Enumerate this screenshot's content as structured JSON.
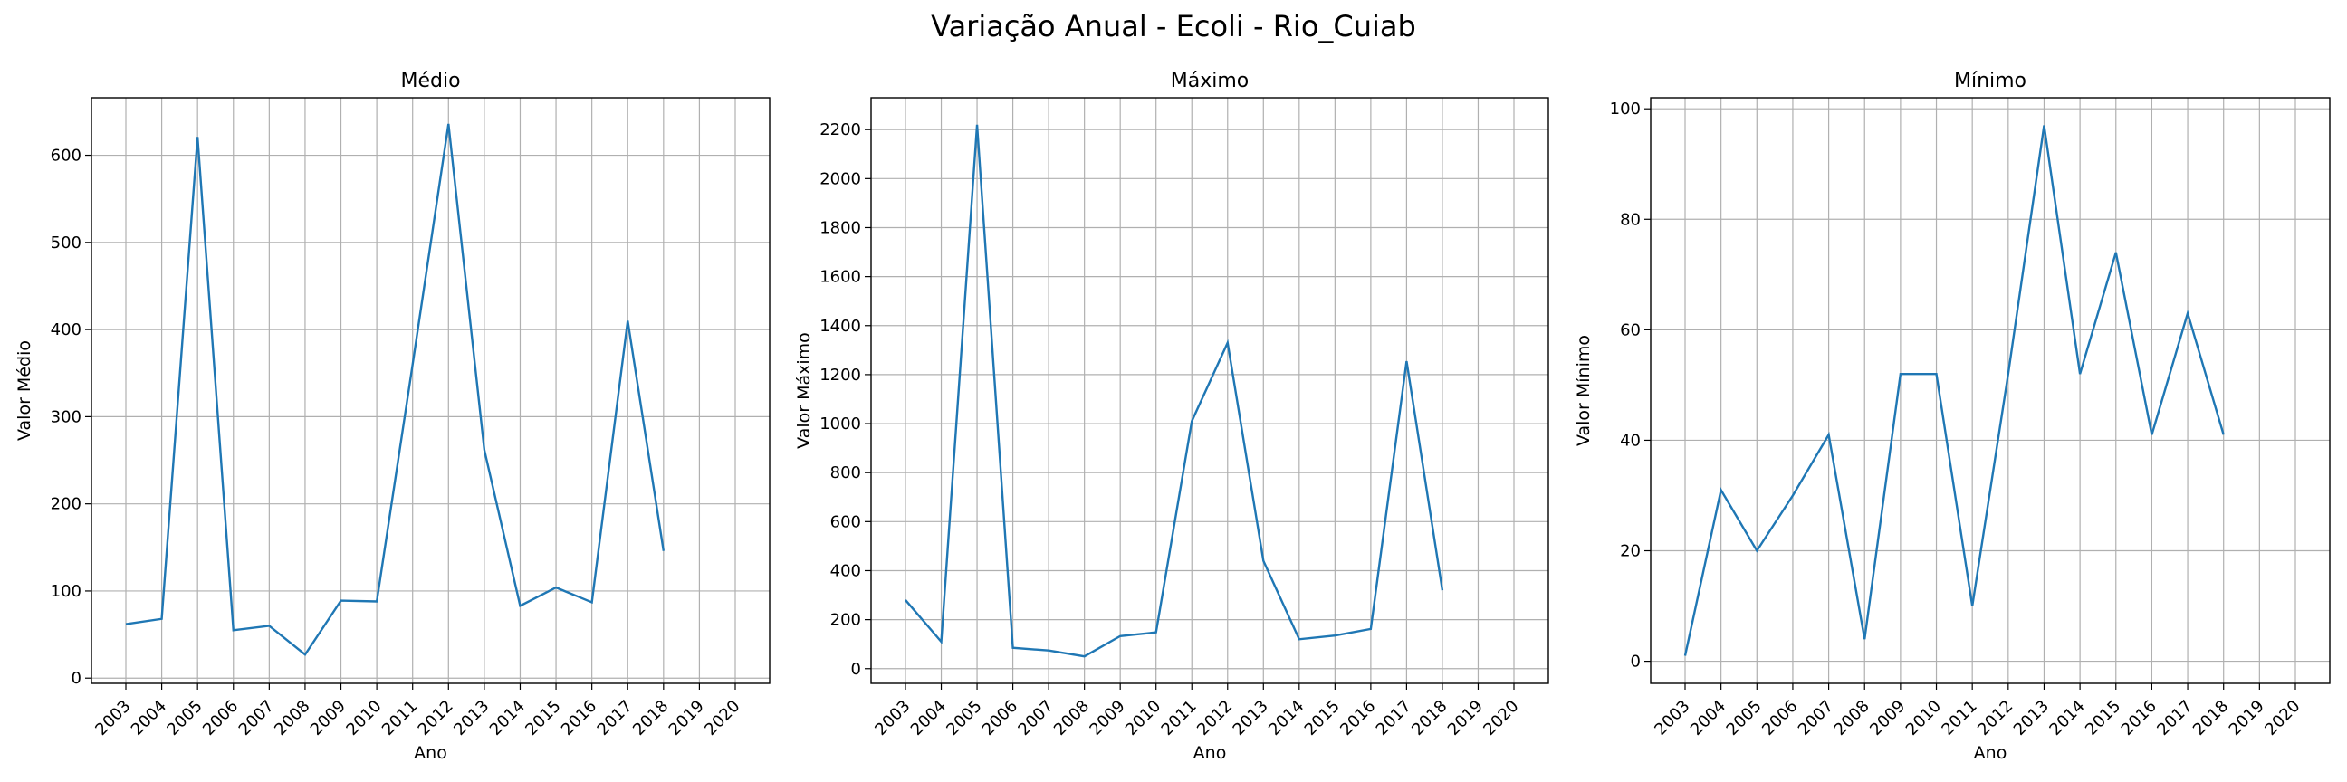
{
  "figure": {
    "title": "Variação Anual - Ecoli - Rio_Cuiab",
    "line_color": "#1f77b4",
    "grid_color": "#b0b0b0"
  },
  "chart_data": [
    {
      "type": "line",
      "title": "Médio",
      "xlabel": "Ano",
      "ylabel": "Valor Médio",
      "grid": true,
      "x_ticks": [
        "2003",
        "2004",
        "2005",
        "2006",
        "2007",
        "2008",
        "2009",
        "2010",
        "2011",
        "2012",
        "2013",
        "2014",
        "2015",
        "2016",
        "2017",
        "2018",
        "2019",
        "2020"
      ],
      "y_ticks": [
        0,
        100,
        200,
        300,
        400,
        500,
        600
      ],
      "ylim": [
        -6,
        666
      ],
      "series": [
        {
          "x": [
            "2003",
            "2004",
            "2005",
            "2006",
            "2007",
            "2008",
            "2009",
            "2010",
            "2011",
            "2012",
            "2013",
            "2014",
            "2015",
            "2016",
            "2017",
            "2018"
          ],
          "values": [
            62,
            68,
            621,
            55,
            60,
            27,
            89,
            88,
            360,
            636,
            262,
            83,
            104,
            87,
            410,
            146
          ]
        }
      ]
    },
    {
      "type": "line",
      "title": "Máximo",
      "xlabel": "Ano",
      "ylabel": "Valor Máximo",
      "grid": true,
      "x_ticks": [
        "2003",
        "2004",
        "2005",
        "2006",
        "2007",
        "2008",
        "2009",
        "2010",
        "2011",
        "2012",
        "2013",
        "2014",
        "2015",
        "2016",
        "2017",
        "2018",
        "2019",
        "2020"
      ],
      "y_ticks": [
        0,
        200,
        400,
        600,
        800,
        1000,
        1200,
        1400,
        1600,
        1800,
        2000,
        2200
      ],
      "ylim": [
        -60,
        2330
      ],
      "series": [
        {
          "x": [
            "2003",
            "2004",
            "2005",
            "2006",
            "2007",
            "2008",
            "2009",
            "2010",
            "2011",
            "2012",
            "2013",
            "2014",
            "2015",
            "2016",
            "2017",
            "2018"
          ],
          "values": [
            280,
            110,
            2220,
            85,
            74,
            50,
            133,
            148,
            1010,
            1330,
            440,
            120,
            135,
            162,
            1255,
            320
          ]
        }
      ]
    },
    {
      "type": "line",
      "title": "Mínimo",
      "xlabel": "Ano",
      "ylabel": "Valor Mínimo",
      "grid": true,
      "x_ticks": [
        "2003",
        "2004",
        "2005",
        "2006",
        "2007",
        "2008",
        "2009",
        "2010",
        "2011",
        "2012",
        "2013",
        "2014",
        "2015",
        "2016",
        "2017",
        "2018",
        "2019",
        "2020"
      ],
      "y_ticks": [
        0,
        20,
        40,
        60,
        80,
        100
      ],
      "ylim": [
        -4,
        102
      ],
      "series": [
        {
          "x": [
            "2003",
            "2004",
            "2005",
            "2006",
            "2007",
            "2008",
            "2009",
            "2010",
            "2011",
            "2012",
            "2013",
            "2014",
            "2015",
            "2016",
            "2017",
            "2018"
          ],
          "values": [
            1,
            31,
            20,
            30,
            41,
            4,
            52,
            52,
            10,
            52,
            97,
            52,
            74,
            41,
            63,
            41
          ]
        }
      ]
    }
  ]
}
